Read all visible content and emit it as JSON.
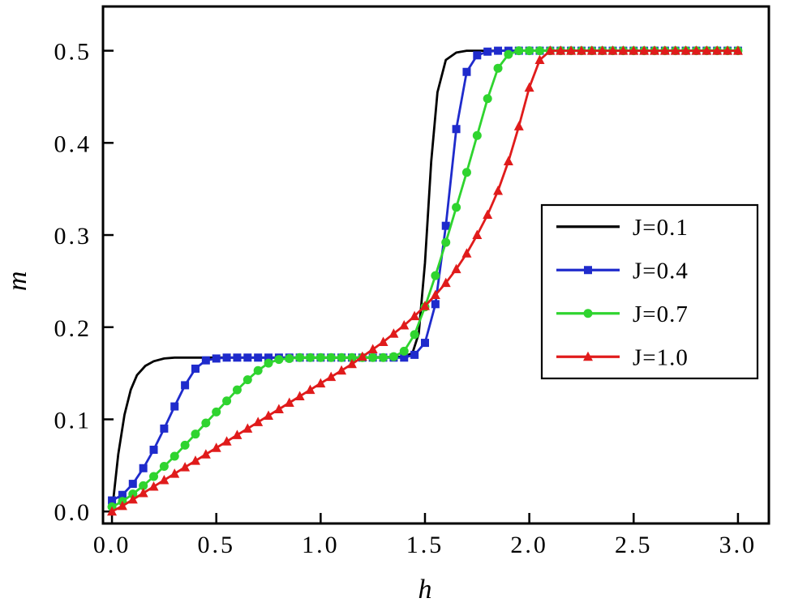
{
  "figure": {
    "background": "#ffffff",
    "frame_color": "#000000"
  },
  "chart_data": {
    "type": "line",
    "title": "",
    "xlabel": "h",
    "ylabel": "m",
    "xlim": [
      -0.043,
      3.148
    ],
    "ylim": [
      -0.013,
      0.548
    ],
    "grid": false,
    "xticks": [
      0.0,
      0.5,
      1.0,
      1.5,
      2.0,
      2.5,
      3.0
    ],
    "yticks": [
      0.0,
      0.1,
      0.2,
      0.3,
      0.4,
      0.5
    ],
    "xtick_labels": [
      "0.0",
      "0.5",
      "1.0",
      "1.5",
      "2.0",
      "2.5",
      "3.0"
    ],
    "ytick_labels": [
      "0.0",
      "0.1",
      "0.2",
      "0.3",
      "0.4",
      "0.5"
    ],
    "legend": {
      "position": "center-right",
      "border_color": "#000000",
      "entries": [
        "J=0.1",
        "J=0.4",
        "J=0.7",
        "J=1.0"
      ]
    },
    "x": [
      0,
      0.05,
      0.1,
      0.15,
      0.2,
      0.25,
      0.3,
      0.35,
      0.4,
      0.45,
      0.5,
      0.55,
      0.6,
      0.65,
      0.7,
      0.75,
      0.8,
      0.85,
      0.9,
      0.95,
      1,
      1.05,
      1.1,
      1.15,
      1.2,
      1.25,
      1.3,
      1.35,
      1.4,
      1.45,
      1.5,
      1.55,
      1.6,
      1.65,
      1.7,
      1.75,
      1.8,
      1.85,
      1.9,
      1.95,
      2,
      2.05,
      2.1,
      2.15,
      2.2,
      2.25,
      2.3,
      2.35,
      2.4,
      2.45,
      2.5,
      2.55,
      2.6,
      2.65,
      2.7,
      2.75,
      2.8,
      2.85,
      2.9,
      2.95,
      3
    ],
    "series": [
      {
        "name": "J=0.1",
        "color": "#000000",
        "marker": "none",
        "line": "solid",
        "x": [
          0,
          0.03,
          0.06,
          0.09,
          0.12,
          0.16,
          0.2,
          0.25,
          0.3,
          0.4,
          0.6,
          0.8,
          1.0,
          1.2,
          1.4,
          1.44,
          1.47,
          1.5,
          1.53,
          1.56,
          1.6,
          1.65,
          1.7,
          1.8,
          2.0,
          2.2,
          2.4,
          2.6,
          2.8,
          3.0
        ],
        "y": [
          0,
          0.062,
          0.105,
          0.132,
          0.148,
          0.158,
          0.163,
          0.166,
          0.167,
          0.167,
          0.167,
          0.167,
          0.167,
          0.167,
          0.168,
          0.172,
          0.193,
          0.27,
          0.38,
          0.455,
          0.49,
          0.498,
          0.5,
          0.5,
          0.5,
          0.5,
          0.5,
          0.5,
          0.5,
          0.5
        ]
      },
      {
        "name": "J=0.4",
        "color": "#1f2bcc",
        "marker": "square",
        "line": "solid",
        "y": [
          0.012,
          0.018,
          0.03,
          0.047,
          0.067,
          0.09,
          0.114,
          0.137,
          0.155,
          0.164,
          0.166,
          0.167,
          0.167,
          0.167,
          0.167,
          0.167,
          0.167,
          0.167,
          0.167,
          0.167,
          0.167,
          0.167,
          0.167,
          0.167,
          0.167,
          0.167,
          0.167,
          0.167,
          0.167,
          0.17,
          0.183,
          0.225,
          0.31,
          0.415,
          0.477,
          0.495,
          0.499,
          0.5,
          0.5,
          0.5,
          0.5,
          0.5,
          0.5,
          0.5,
          0.5,
          0.5,
          0.5,
          0.5,
          0.5,
          0.5,
          0.5,
          0.5,
          0.5,
          0.5,
          0.5,
          0.5,
          0.5,
          0.5,
          0.5,
          0.5,
          0.5
        ]
      },
      {
        "name": "J=0.7",
        "color": "#2fd42f",
        "marker": "circle",
        "line": "solid",
        "y": [
          0.005,
          0.011,
          0.019,
          0.028,
          0.038,
          0.049,
          0.06,
          0.072,
          0.084,
          0.096,
          0.108,
          0.12,
          0.132,
          0.143,
          0.153,
          0.161,
          0.165,
          0.166,
          0.167,
          0.167,
          0.167,
          0.167,
          0.167,
          0.167,
          0.167,
          0.167,
          0.167,
          0.168,
          0.174,
          0.192,
          0.222,
          0.256,
          0.292,
          0.33,
          0.368,
          0.408,
          0.448,
          0.481,
          0.496,
          0.5,
          0.5,
          0.5,
          0.5,
          0.5,
          0.5,
          0.5,
          0.5,
          0.5,
          0.5,
          0.5,
          0.5,
          0.5,
          0.5,
          0.5,
          0.5,
          0.5,
          0.5,
          0.5,
          0.5,
          0.5,
          0.5
        ]
      },
      {
        "name": "J=1.0",
        "color": "#e01b1b",
        "marker": "triangle",
        "line": "solid",
        "y": [
          0,
          0.006,
          0.013,
          0.02,
          0.027,
          0.034,
          0.041,
          0.048,
          0.055,
          0.062,
          0.069,
          0.076,
          0.083,
          0.09,
          0.097,
          0.104,
          0.111,
          0.118,
          0.125,
          0.132,
          0.139,
          0.146,
          0.153,
          0.16,
          0.168,
          0.176,
          0.184,
          0.193,
          0.202,
          0.212,
          0.223,
          0.235,
          0.248,
          0.263,
          0.28,
          0.3,
          0.322,
          0.348,
          0.38,
          0.418,
          0.46,
          0.49,
          0.5,
          0.5,
          0.5,
          0.5,
          0.5,
          0.5,
          0.5,
          0.5,
          0.5,
          0.5,
          0.5,
          0.5,
          0.5,
          0.5,
          0.5,
          0.5,
          0.5,
          0.5,
          0.5
        ]
      }
    ]
  }
}
